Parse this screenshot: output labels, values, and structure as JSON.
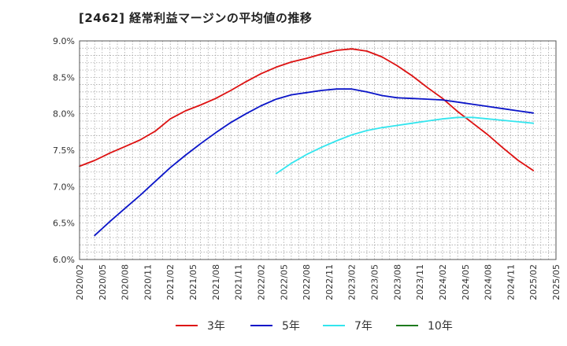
{
  "chart_data": {
    "type": "line",
    "title": "[2462]  経常利益マージンの平均値の推移",
    "ylim": [
      6.0,
      9.0
    ],
    "y_ticks": [
      "6.0%",
      "6.5%",
      "7.0%",
      "7.5%",
      "8.0%",
      "8.5%",
      "9.0%"
    ],
    "x_ticks": [
      "2020/02",
      "2020/05",
      "2020/08",
      "2020/11",
      "2021/02",
      "2021/05",
      "2021/08",
      "2021/11",
      "2022/02",
      "2022/05",
      "2022/08",
      "2022/11",
      "2023/02",
      "2023/05",
      "2023/08",
      "2023/11",
      "2024/02",
      "2024/05",
      "2024/08",
      "2024/11",
      "2025/02",
      "2025/05"
    ],
    "grid": true,
    "legend_position": "bottom",
    "series": [
      {
        "name": "3年",
        "color": "#dd1111",
        "points": [
          [
            "2020/02",
            7.28
          ],
          [
            "2020/04",
            7.36
          ],
          [
            "2020/06",
            7.46
          ],
          [
            "2020/08",
            7.55
          ],
          [
            "2020/10",
            7.64
          ],
          [
            "2020/12",
            7.76
          ],
          [
            "2021/02",
            7.93
          ],
          [
            "2021/04",
            8.04
          ],
          [
            "2021/06",
            8.12
          ],
          [
            "2021/08",
            8.21
          ],
          [
            "2021/10",
            8.32
          ],
          [
            "2021/12",
            8.44
          ],
          [
            "2022/02",
            8.55
          ],
          [
            "2022/04",
            8.64
          ],
          [
            "2022/06",
            8.71
          ],
          [
            "2022/08",
            8.76
          ],
          [
            "2022/10",
            8.82
          ],
          [
            "2022/12",
            8.87
          ],
          [
            "2023/02",
            8.89
          ],
          [
            "2023/04",
            8.86
          ],
          [
            "2023/06",
            8.78
          ],
          [
            "2023/08",
            8.66
          ],
          [
            "2023/10",
            8.52
          ],
          [
            "2023/12",
            8.36
          ],
          [
            "2024/02",
            8.21
          ],
          [
            "2024/04",
            8.03
          ],
          [
            "2024/06",
            7.87
          ],
          [
            "2024/08",
            7.71
          ],
          [
            "2024/10",
            7.53
          ],
          [
            "2024/12",
            7.36
          ],
          [
            "2025/02",
            7.22
          ]
        ]
      },
      {
        "name": "5年",
        "color": "#0a14c8",
        "points": [
          [
            "2020/04",
            6.33
          ],
          [
            "2020/06",
            6.52
          ],
          [
            "2020/08",
            6.7
          ],
          [
            "2020/10",
            6.88
          ],
          [
            "2020/12",
            7.07
          ],
          [
            "2021/02",
            7.26
          ],
          [
            "2021/04",
            7.43
          ],
          [
            "2021/06",
            7.59
          ],
          [
            "2021/08",
            7.74
          ],
          [
            "2021/10",
            7.88
          ],
          [
            "2021/12",
            8.0
          ],
          [
            "2022/02",
            8.11
          ],
          [
            "2022/04",
            8.2
          ],
          [
            "2022/06",
            8.26
          ],
          [
            "2022/08",
            8.29
          ],
          [
            "2022/10",
            8.32
          ],
          [
            "2022/12",
            8.34
          ],
          [
            "2023/02",
            8.34
          ],
          [
            "2023/04",
            8.3
          ],
          [
            "2023/06",
            8.25
          ],
          [
            "2023/08",
            8.22
          ],
          [
            "2023/10",
            8.21
          ],
          [
            "2023/12",
            8.2
          ],
          [
            "2024/02",
            8.19
          ],
          [
            "2024/04",
            8.16
          ],
          [
            "2024/06",
            8.13
          ],
          [
            "2024/08",
            8.1
          ],
          [
            "2024/10",
            8.07
          ],
          [
            "2024/12",
            8.04
          ],
          [
            "2025/02",
            8.01
          ]
        ]
      },
      {
        "name": "7年",
        "color": "#33e5ee",
        "points": [
          [
            "2022/04",
            7.18
          ],
          [
            "2022/06",
            7.32
          ],
          [
            "2022/08",
            7.44
          ],
          [
            "2022/10",
            7.54
          ],
          [
            "2022/12",
            7.63
          ],
          [
            "2023/02",
            7.71
          ],
          [
            "2023/04",
            7.77
          ],
          [
            "2023/06",
            7.81
          ],
          [
            "2023/08",
            7.84
          ],
          [
            "2023/10",
            7.87
          ],
          [
            "2023/12",
            7.9
          ],
          [
            "2024/02",
            7.93
          ],
          [
            "2024/04",
            7.95
          ],
          [
            "2024/06",
            7.95
          ],
          [
            "2024/08",
            7.93
          ],
          [
            "2024/10",
            7.91
          ],
          [
            "2024/12",
            7.89
          ],
          [
            "2025/02",
            7.87
          ]
        ]
      },
      {
        "name": "10年",
        "color": "#1e7a1e",
        "points": []
      }
    ]
  }
}
